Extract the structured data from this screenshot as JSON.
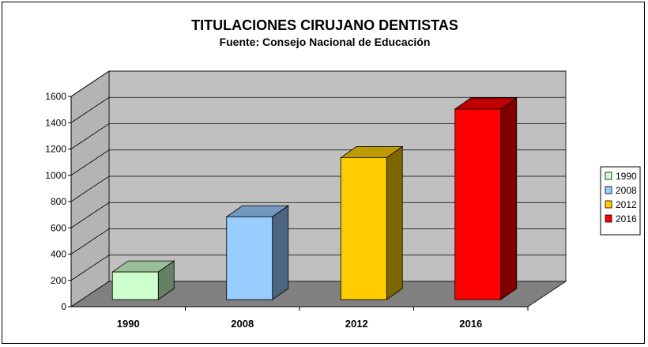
{
  "chart_data": {
    "type": "bar",
    "title": "TITULACIONES CIRUJANO DENTISTAS",
    "subtitle": "Fuente: Consejo Nacional de Educación",
    "categories": [
      "1990",
      "2008",
      "2012",
      "2016"
    ],
    "values": [
      210,
      630,
      1080,
      1450
    ],
    "colors": [
      "#ccffcc",
      "#99ccff",
      "#ffcc00",
      "#ff0000"
    ],
    "ylim": [
      0,
      1600
    ],
    "yticks": [
      "0",
      "200",
      "400",
      "600",
      "800",
      "1000",
      "1200",
      "1400",
      "1600"
    ],
    "grid": true,
    "legend": {
      "placement": "right",
      "entries": [
        "1990",
        "2008",
        "2012",
        "2016"
      ]
    },
    "xlabel": "",
    "ylabel": ""
  }
}
